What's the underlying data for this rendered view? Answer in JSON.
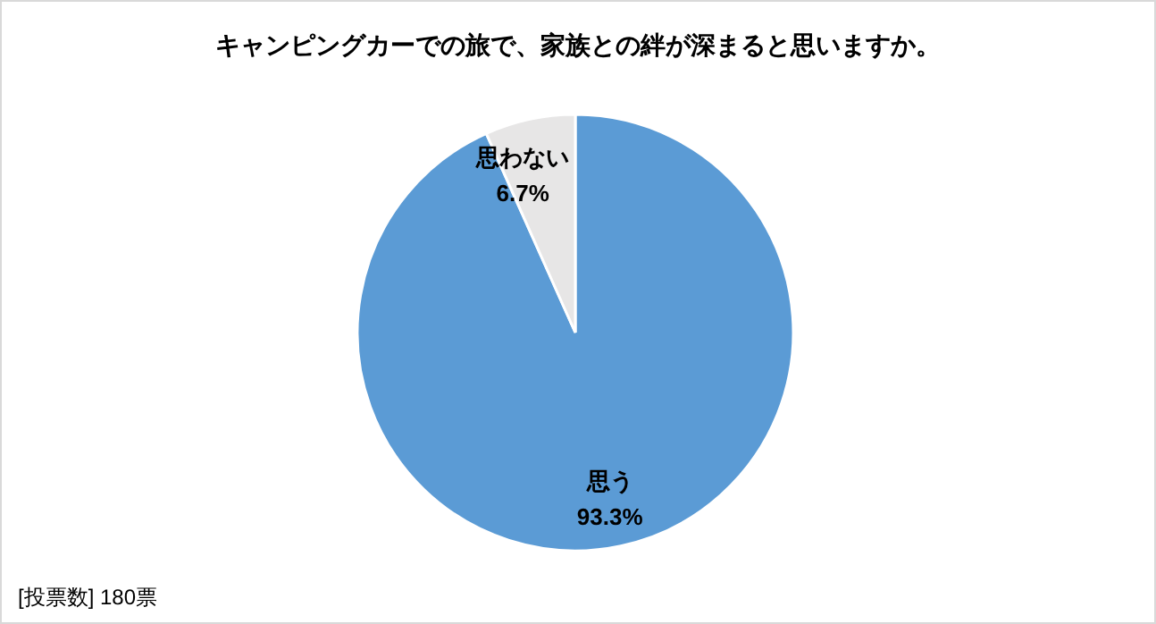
{
  "chart_data": {
    "type": "pie",
    "title": "キャンピングカーでの旅で、家族との絆が深まると思いますか。",
    "categories": [
      "思う",
      "思わない"
    ],
    "values": [
      93.3,
      6.7
    ],
    "value_labels": [
      "93.3%",
      "6.7%"
    ],
    "colors": [
      "#5b9bd5",
      "#e7e6e6"
    ],
    "annotations": [
      "[投票数] 180票"
    ]
  }
}
